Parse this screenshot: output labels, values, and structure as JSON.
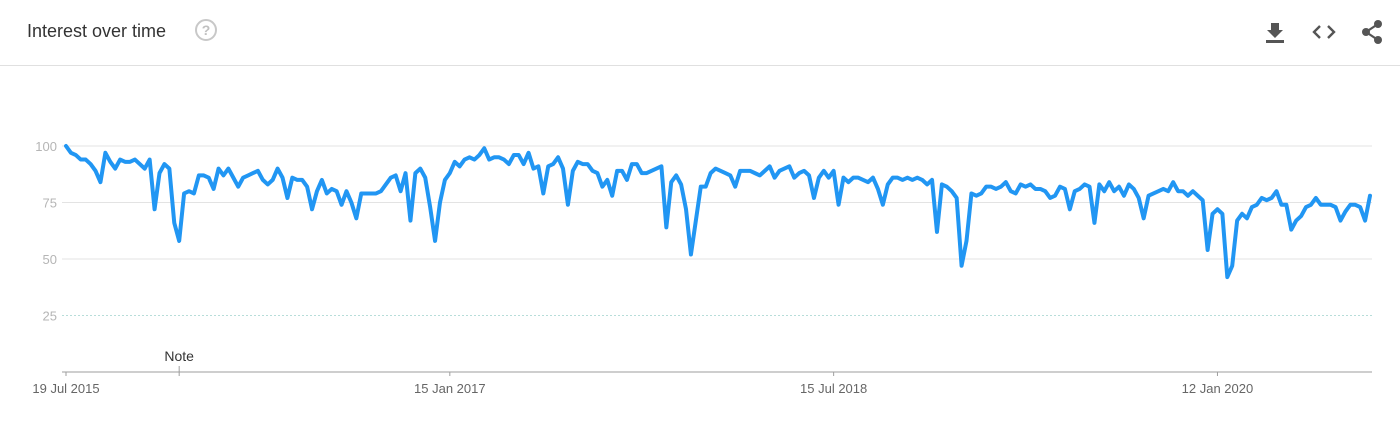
{
  "header": {
    "title": "Interest over time",
    "help_icon": "help-circle-icon",
    "actions": [
      {
        "name": "download-button",
        "icon": "download-icon"
      },
      {
        "name": "embed-button",
        "icon": "code-icon"
      },
      {
        "name": "share-button",
        "icon": "share-icon"
      }
    ]
  },
  "chart_data": {
    "type": "line",
    "title": "Interest over time",
    "xlabel": "",
    "ylabel": "",
    "ylim": [
      0,
      100
    ],
    "y_ticks": [
      25,
      50,
      75,
      100
    ],
    "x_tick_labels": [
      "19 Jul 2015",
      "15 Jan 2017",
      "15 Jul 2018",
      "12 Jan 2020"
    ],
    "x_tick_index": [
      0,
      78,
      156,
      234
    ],
    "note": {
      "label": "Note",
      "index": 23
    },
    "line_color": "#2196f3",
    "grid": true,
    "series": [
      {
        "values": [
          100,
          97,
          96,
          94,
          94,
          92,
          89,
          84,
          97,
          93,
          90,
          94,
          93,
          93,
          94,
          92,
          90,
          94,
          72,
          88,
          92,
          90,
          66,
          58,
          79,
          80,
          79,
          87,
          87,
          86,
          81,
          90,
          87,
          90,
          86,
          82,
          86,
          87,
          88,
          89,
          85,
          83,
          85,
          90,
          86,
          77,
          86,
          85,
          85,
          82,
          72,
          80,
          85,
          79,
          81,
          80,
          74,
          80,
          75,
          68,
          79,
          79,
          79,
          79,
          80,
          83,
          86,
          87,
          80,
          88,
          67,
          88,
          90,
          86,
          73,
          58,
          75,
          85,
          88,
          93,
          91,
          94,
          95,
          94,
          96,
          99,
          94,
          95,
          95,
          94,
          92,
          96,
          96,
          92,
          97,
          90,
          91,
          79,
          91,
          92,
          95,
          90,
          74,
          89,
          93,
          92,
          92,
          89,
          88,
          82,
          85,
          78,
          89,
          89,
          85,
          92,
          92,
          88,
          88,
          89,
          90,
          91,
          64,
          84,
          87,
          83,
          72,
          52,
          67,
          82,
          82,
          88,
          90,
          89,
          88,
          87,
          82,
          89,
          89,
          89,
          88,
          87,
          89,
          91,
          86,
          89,
          90,
          91,
          86,
          88,
          89,
          87,
          77,
          86,
          89,
          86,
          89,
          74,
          86,
          84,
          86,
          86,
          85,
          84,
          86,
          81,
          74,
          83,
          86,
          86,
          85,
          86,
          85,
          86,
          85,
          83,
          85,
          62,
          83,
          82,
          80,
          77,
          47,
          58,
          79,
          78,
          79,
          82,
          82,
          81,
          82,
          84,
          80,
          79,
          83,
          82,
          83,
          81,
          81,
          80,
          77,
          78,
          82,
          81,
          72,
          80,
          81,
          83,
          82,
          66,
          83,
          80,
          84,
          80,
          82,
          78,
          83,
          81,
          77,
          68,
          78,
          79,
          80,
          81,
          80,
          84,
          80,
          80,
          78,
          80,
          78,
          76,
          54,
          70,
          72,
          70,
          42,
          47,
          67,
          70,
          68,
          73,
          74,
          77,
          76,
          77,
          80,
          74,
          74,
          63,
          67,
          69,
          73,
          74,
          77,
          74,
          74,
          74,
          73,
          67,
          71,
          74,
          74,
          73,
          67,
          78
        ]
      }
    ]
  }
}
